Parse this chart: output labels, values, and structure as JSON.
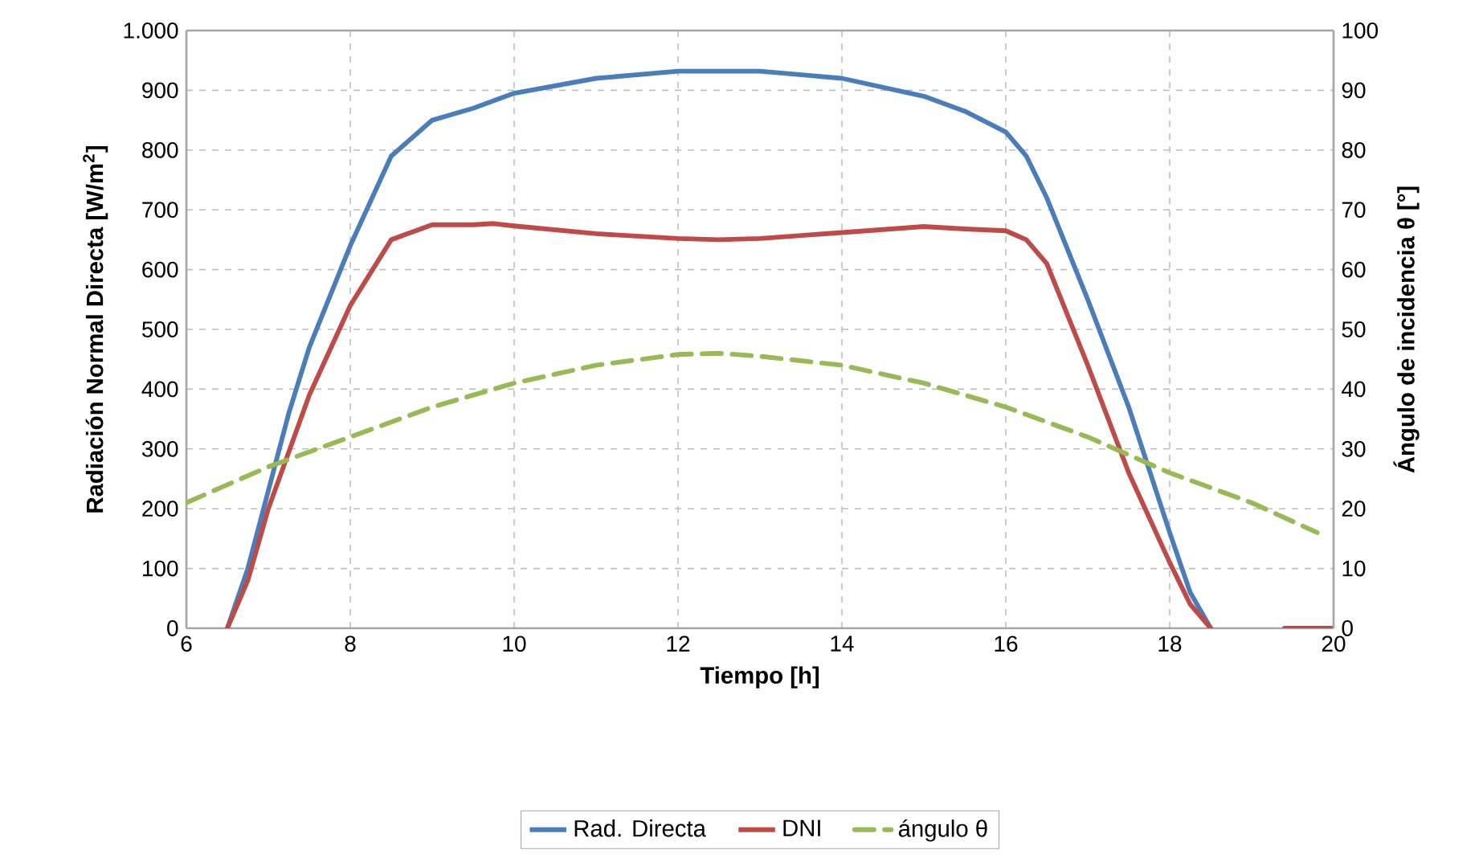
{
  "chart_data": {
    "type": "line",
    "xlabel": "Tiempo [h]",
    "ylabel": "Radiación Normal Directa [W/m$^{2}$]",
    "y2label": "Ángulo de incidencia θ [°]",
    "xlim": [
      6,
      20
    ],
    "xticks": [
      6,
      8,
      10,
      12,
      14,
      16,
      18,
      20
    ],
    "ylim": [
      0,
      1000
    ],
    "yticks": [
      0,
      100,
      200,
      300,
      400,
      500,
      600,
      700,
      800,
      900,
      {
        "value": 1000,
        "label": "1.000"
      }
    ],
    "y2lim": [
      0,
      100
    ],
    "y2ticks": [
      0,
      10,
      20,
      30,
      40,
      50,
      60,
      70,
      80,
      90,
      100
    ],
    "grid": true,
    "legend": "bottom",
    "series": [
      {
        "name": "Rad. Directa",
        "color": "#4a7ebb",
        "line_style": "solid",
        "x": [
          6.5,
          6.75,
          7,
          7.25,
          7.5,
          8,
          8.5,
          9,
          9.5,
          10,
          11,
          12,
          13,
          14,
          15,
          15.5,
          16,
          16.25,
          16.5,
          17,
          17.5,
          18,
          18.25,
          18.5
        ],
        "values": [
          0,
          100,
          230,
          360,
          470,
          640,
          790,
          850,
          870,
          895,
          920,
          932,
          932,
          920,
          890,
          865,
          830,
          790,
          720,
          550,
          370,
          160,
          60,
          0
        ]
      },
      {
        "name": "DNI",
        "color": "#be4b48",
        "line_style": "solid",
        "x": [
          6.5,
          6.75,
          7,
          7.5,
          8,
          8.5,
          9,
          9.5,
          9.75,
          10,
          11,
          12,
          12.5,
          13,
          14,
          15,
          15.5,
          16,
          16.25,
          16.5,
          17,
          17.5,
          18,
          18.25,
          18.5,
          19,
          19.4,
          20
        ],
        "values": [
          0,
          80,
          200,
          390,
          540,
          650,
          675,
          675,
          677,
          673,
          660,
          652,
          650,
          652,
          662,
          672,
          668,
          665,
          650,
          610,
          440,
          260,
          110,
          40,
          0,
          null,
          0,
          0
        ]
      },
      {
        "name": "ángulo θ",
        "color": "#98b954",
        "line_style": "dashed",
        "axis": "y2",
        "x": [
          6,
          7,
          8,
          9,
          10,
          11,
          12,
          12.5,
          13,
          14,
          15,
          16,
          17,
          18,
          19,
          19.8
        ],
        "values": [
          21,
          27,
          32,
          37,
          41,
          44,
          45.8,
          46,
          45.5,
          44,
          41,
          37,
          32,
          26,
          21,
          16
        ]
      }
    ]
  }
}
